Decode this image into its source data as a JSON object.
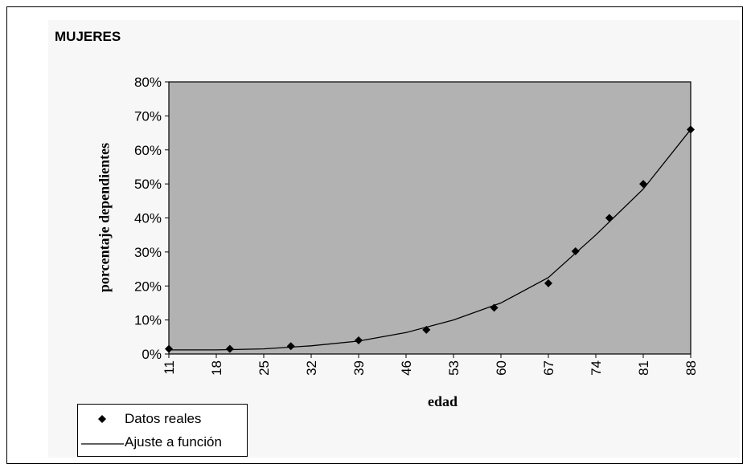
{
  "chart_data": {
    "type": "line",
    "title": "MUJERES",
    "xlabel": "edad",
    "ylabel": "porcentaje dependientes",
    "x_ticks": [
      "11",
      "18",
      "25",
      "32",
      "39",
      "46",
      "53",
      "60",
      "67",
      "74",
      "81",
      "88"
    ],
    "y_ticks": [
      "0%",
      "10%",
      "20%",
      "30%",
      "40%",
      "50%",
      "60%",
      "70%",
      "80%"
    ],
    "xlim": [
      11,
      88
    ],
    "ylim": [
      0,
      80
    ],
    "plot_background": "#b2b2b2",
    "grid": false,
    "legend_position": "bottom-left",
    "series": [
      {
        "name": "Datos reales",
        "style": "markers",
        "marker": "diamond",
        "x": [
          11,
          20,
          29,
          39,
          49,
          59,
          67,
          71,
          76,
          81,
          88
        ],
        "y": [
          1.5,
          1.5,
          2.3,
          4,
          7.1,
          13.6,
          20.8,
          30.2,
          40,
          50,
          66
        ]
      },
      {
        "name": "Ajuste a función",
        "style": "line",
        "x": [
          11,
          18,
          25,
          32,
          39,
          46,
          53,
          60,
          67,
          74,
          81,
          88
        ],
        "y": [
          1.2,
          1.2,
          1.5,
          2.4,
          3.8,
          6.3,
          10,
          15,
          22.5,
          35,
          48.5,
          66
        ]
      }
    ]
  }
}
